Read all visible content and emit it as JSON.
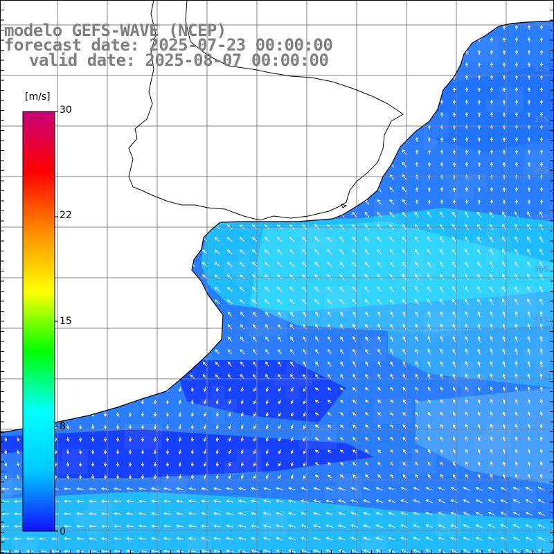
{
  "title": {
    "line1": "modelo GEFS-WAVE (NCEP)",
    "line2": "forecast date: 2025-07-23 00:00:00",
    "line3": "valid date: 2025-08-07 00:00:00"
  },
  "colorbar": {
    "unit": "[m/s]",
    "ticks": [
      "30",
      "22",
      "15",
      "8",
      "0"
    ],
    "min": 0,
    "max": 30,
    "colors": [
      "#1010ff",
      "#00c8ff",
      "#00ffff",
      "#00ff00",
      "#ffff00",
      "#ff8c00",
      "#ff0000",
      "#c8007a"
    ]
  },
  "map": {
    "land_color": "#ffffff",
    "coast_color": "#000000",
    "grid_color": "#808080",
    "edge_labels": [
      "32S",
      "33S",
      "34S",
      "35S",
      "36S",
      "37S",
      "38S",
      "39S",
      "40S"
    ]
  }
}
